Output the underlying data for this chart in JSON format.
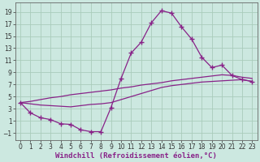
{
  "xlabel": "Windchill (Refroidissement éolien,°C)",
  "bg_color": "#cce8e0",
  "grid_color": "#aaccbb",
  "line_color": "#882288",
  "x_ticks": [
    0,
    1,
    2,
    3,
    4,
    5,
    6,
    7,
    8,
    9,
    10,
    11,
    12,
    13,
    14,
    15,
    16,
    17,
    18,
    19,
    20,
    21,
    22,
    23
  ],
  "y_ticks": [
    -1,
    1,
    3,
    5,
    7,
    9,
    11,
    13,
    15,
    17,
    19
  ],
  "xlim": [
    -0.5,
    23.5
  ],
  "ylim": [
    -2.2,
    20.5
  ],
  "line1_x": [
    0,
    1,
    2,
    3,
    4,
    5,
    6,
    7,
    8,
    9,
    10,
    11,
    12,
    13,
    14,
    15,
    16,
    17,
    18,
    19,
    20,
    21,
    22,
    23
  ],
  "line1_y": [
    4.0,
    2.3,
    1.5,
    1.2,
    0.5,
    0.4,
    -0.5,
    -0.8,
    -0.8,
    3.2,
    8.0,
    12.2,
    14.0,
    17.2,
    19.2,
    18.8,
    16.5,
    14.5,
    11.5,
    9.8,
    10.2,
    8.5,
    7.8,
    7.5
  ],
  "line2_x": [
    0,
    1,
    2,
    3,
    4,
    5,
    6,
    7,
    8,
    9,
    10,
    11,
    12,
    13,
    14,
    15,
    16,
    17,
    18,
    19,
    20,
    21,
    22,
    23
  ],
  "line2_y": [
    4.0,
    4.2,
    4.5,
    4.8,
    5.0,
    5.3,
    5.5,
    5.7,
    5.9,
    6.1,
    6.4,
    6.6,
    6.9,
    7.1,
    7.3,
    7.6,
    7.8,
    8.0,
    8.2,
    8.4,
    8.6,
    8.5,
    8.2,
    8.0
  ],
  "line3_x": [
    0,
    1,
    2,
    3,
    4,
    5,
    6,
    7,
    8,
    9,
    10,
    11,
    12,
    13,
    14,
    15,
    16,
    17,
    18,
    19,
    20,
    21,
    22,
    23
  ],
  "line3_y": [
    4.0,
    3.8,
    3.6,
    3.5,
    3.4,
    3.3,
    3.5,
    3.7,
    3.8,
    4.0,
    4.5,
    5.0,
    5.5,
    6.0,
    6.5,
    6.8,
    7.0,
    7.2,
    7.4,
    7.5,
    7.6,
    7.7,
    7.8,
    7.5
  ],
  "xlabel_fontsize": 6.5,
  "tick_fontsize": 5.5
}
